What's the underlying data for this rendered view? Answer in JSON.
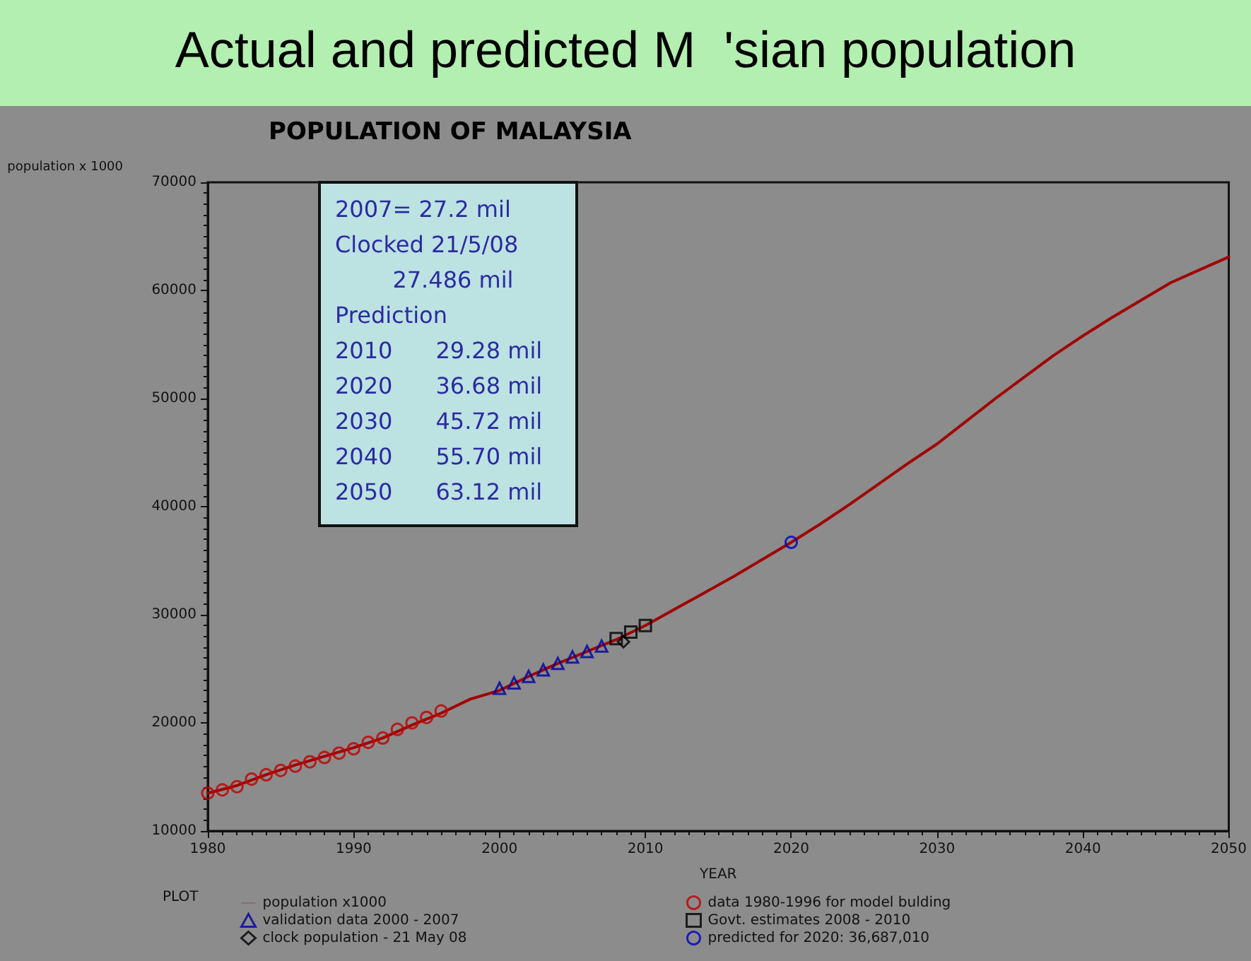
{
  "chart_data": {
    "type": "line",
    "title": "Actual and predicted M  'sian population",
    "subtitle": "POPULATION OF MALAYSIA",
    "xlabel": "YEAR",
    "ylabel": "population x 1000",
    "legend_title": "PLOT",
    "legend": "bottom",
    "grid": false,
    "xlim": [
      1980,
      2050
    ],
    "xticks": [
      1980,
      1990,
      2000,
      2010,
      2020,
      2030,
      2040,
      2050
    ],
    "ylim": [
      10000,
      70000
    ],
    "yticks": [
      10000,
      20000,
      30000,
      40000,
      50000,
      60000,
      70000
    ],
    "annotations": [
      "2007= 27.2 mil",
      "Clocked 21/5/08",
      "        27.486 mil",
      "Prediction",
      "2010      29.28 mil",
      "2020      36.68 mil",
      "2030      45.72 mil",
      "2040      55.70 mil",
      "2050      63.12 mil"
    ],
    "series": [
      {
        "name": "population x1000",
        "marker": "none",
        "line_style": "solid",
        "color": "#a00000",
        "x": [
          1980,
          1982,
          1984,
          1986,
          1988,
          1990,
          1992,
          1994,
          1996,
          1998,
          2000,
          2002,
          2004,
          2006,
          2008,
          2010,
          2012,
          2014,
          2016,
          2018,
          2020,
          2022,
          2024,
          2026,
          2028,
          2030,
          2032,
          2034,
          2036,
          2038,
          2040,
          2042,
          2044,
          2046,
          2048,
          2050
        ],
        "values": [
          13500,
          14200,
          15200,
          16100,
          16900,
          17700,
          18600,
          19800,
          20900,
          22200,
          23000,
          24300,
          25500,
          26600,
          27700,
          29000,
          30500,
          32000,
          33500,
          35100,
          36700,
          38400,
          40200,
          42100,
          44000,
          45800,
          47900,
          50000,
          52000,
          54000,
          55800,
          57500,
          59100,
          60700,
          61900,
          63100
        ]
      },
      {
        "name": "validation data 2000 - 2007",
        "type": "scatter",
        "marker": "triangle",
        "color": "#0000a0",
        "x": [
          2000,
          2001,
          2002,
          2003,
          2004,
          2005,
          2006,
          2007
        ],
        "values": [
          23200,
          23700,
          24300,
          24900,
          25500,
          26100,
          26600,
          27100
        ]
      },
      {
        "name": "clock population - 21 May 08",
        "type": "scatter",
        "marker": "diamond",
        "color": "#000000",
        "x": [
          2008.5
        ],
        "values": [
          27500
        ]
      },
      {
        "name": "data 1980-1996 for model bulding",
        "type": "scatter",
        "marker": "circle",
        "color": "#c00000",
        "x": [
          1980,
          1981,
          1982,
          1983,
          1984,
          1985,
          1986,
          1987,
          1988,
          1989,
          1990,
          1991,
          1992,
          1993,
          1994,
          1995,
          1996
        ],
        "values": [
          13500,
          13800,
          14100,
          14800,
          15200,
          15600,
          16000,
          16400,
          16800,
          17200,
          17600,
          18200,
          18600,
          19400,
          20000,
          20500,
          21100
        ]
      },
      {
        "name": "Govt. estimates 2008 - 2010",
        "type": "scatter",
        "marker": "square",
        "color": "#000000",
        "x": [
          2008,
          2009,
          2010
        ],
        "values": [
          27800,
          28400,
          29000
        ]
      },
      {
        "name": "predicted for 2020: 36,687,010",
        "type": "scatter",
        "marker": "circle",
        "color": "#0000c0",
        "x": [
          2020
        ],
        "values": [
          36700
        ]
      }
    ]
  }
}
